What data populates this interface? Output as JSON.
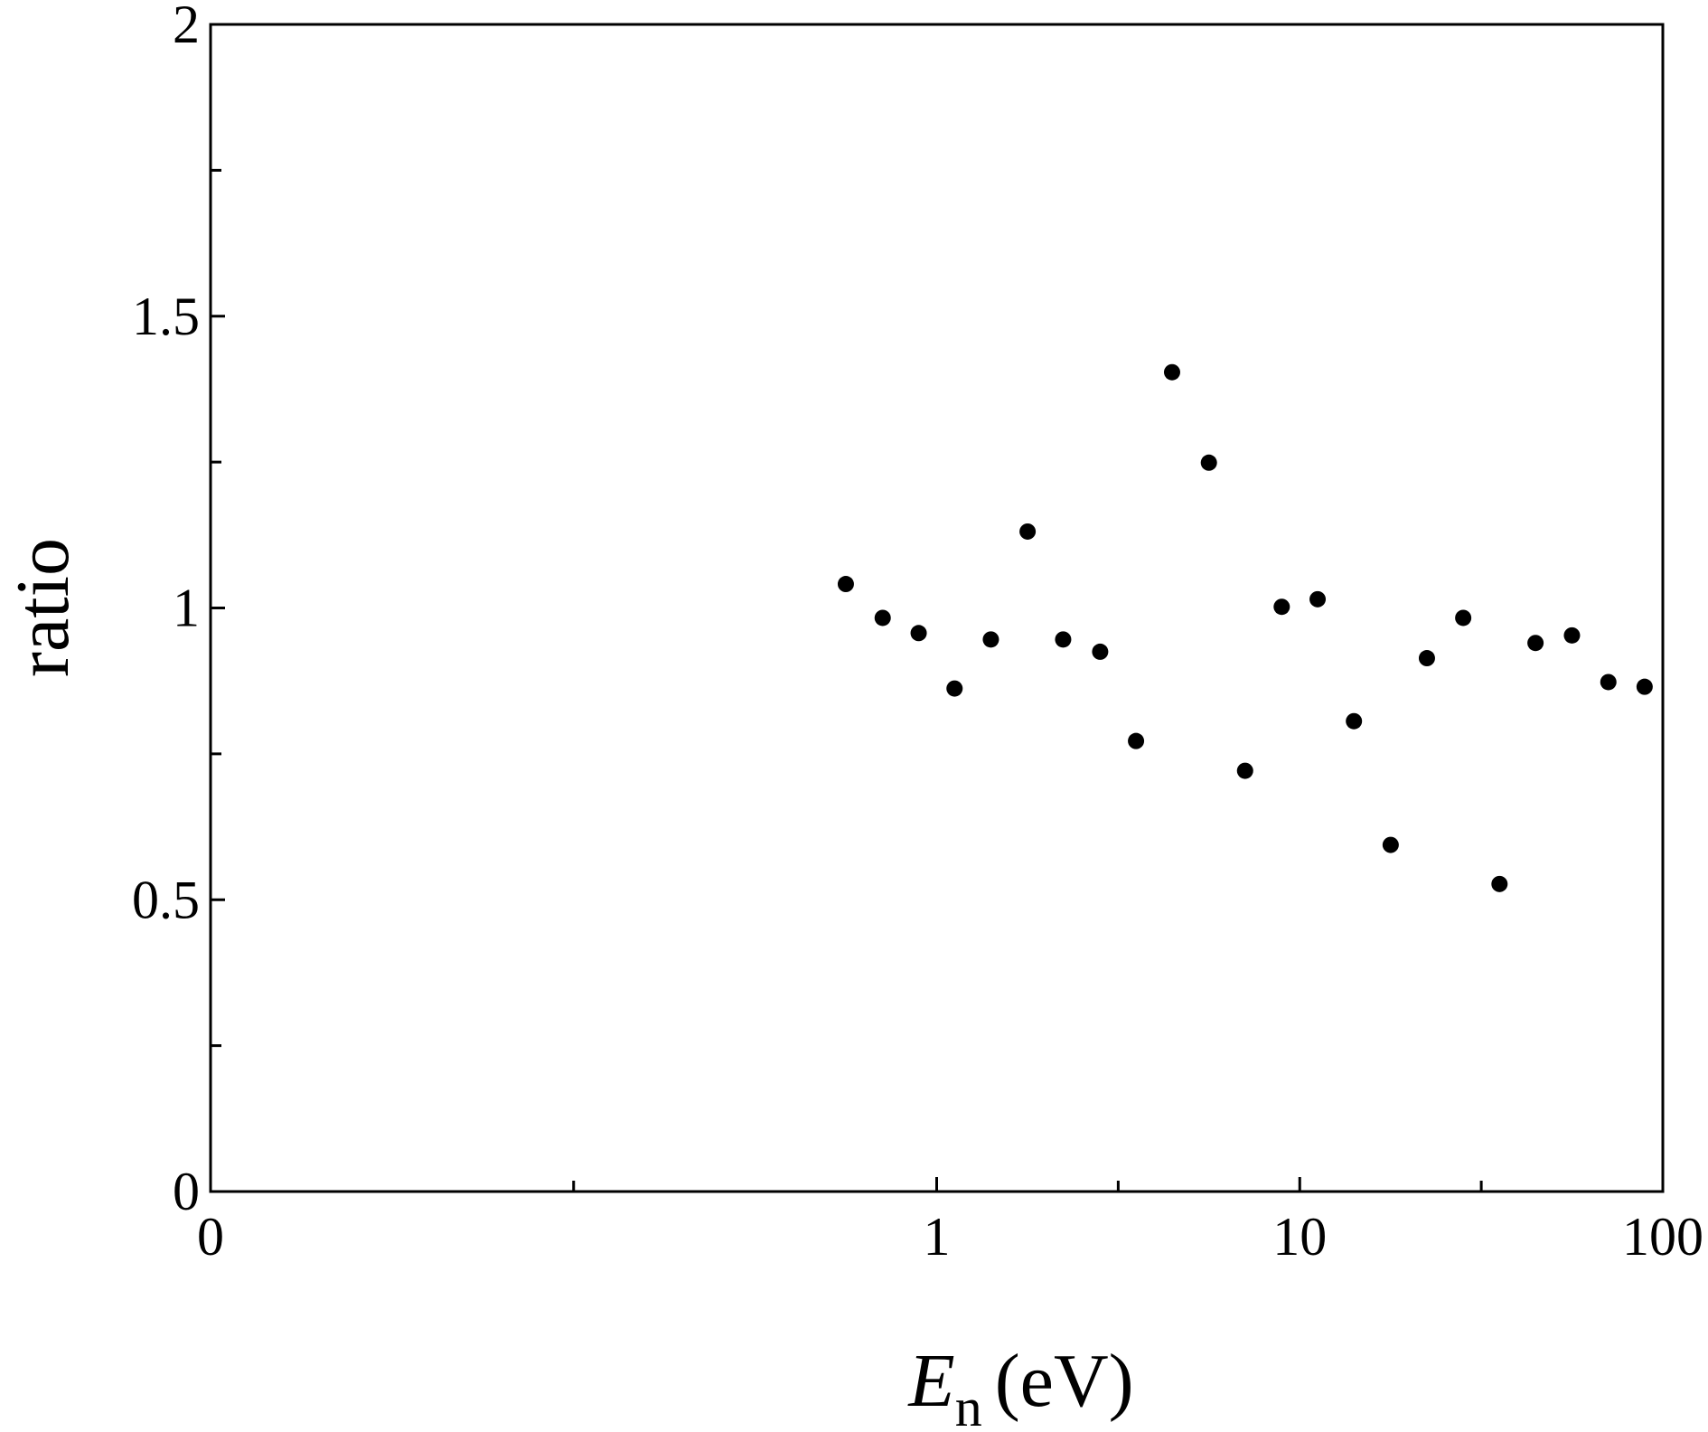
{
  "chart_data": {
    "type": "scatter",
    "x_label_symbol": "E",
    "x_label_subscript": "n",
    "x_label_unit": "(eV)",
    "ylabel": "ratio",
    "xscale": "log",
    "xlim": [
      0.01,
      100
    ],
    "xticks": [
      {
        "value": 0.01,
        "label": "0"
      },
      1,
      10,
      100
    ],
    "xminorticks": [
      0.1,
      3.162,
      31.62
    ],
    "ylim": [
      0,
      2
    ],
    "yticks": [
      0,
      0.5,
      1,
      1.5,
      2
    ],
    "yminorticks": [
      0.25,
      0.75,
      1.25,
      1.75
    ],
    "color": "#000000",
    "x": [
      0.562,
      0.71,
      0.892,
      1.12,
      1.41,
      1.78,
      2.23,
      2.82,
      3.54,
      4.45,
      5.62,
      7.07,
      8.92,
      11.2,
      14.1,
      17.8,
      22.4,
      28.2,
      35.5,
      44.6,
      56.2,
      70.8,
      89.1
    ],
    "values": [
      1.041,
      0.983,
      0.957,
      0.862,
      0.946,
      1.131,
      0.946,
      0.925,
      0.772,
      1.404,
      1.249,
      0.721,
      1.002,
      1.015,
      0.806,
      0.594,
      0.914,
      0.983,
      0.527,
      0.94,
      0.953,
      0.873,
      0.865
    ]
  }
}
